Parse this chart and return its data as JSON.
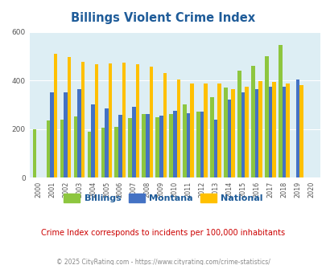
{
  "title": "Billings Violent Crime Index",
  "years": [
    2000,
    2001,
    2002,
    2003,
    2004,
    2005,
    2006,
    2007,
    2008,
    2009,
    2010,
    2011,
    2012,
    2013,
    2014,
    2015,
    2016,
    2017,
    2018,
    2019,
    2020
  ],
  "billings": [
    200,
    235,
    240,
    250,
    190,
    205,
    210,
    245,
    260,
    248,
    260,
    300,
    270,
    330,
    370,
    440,
    460,
    500,
    545,
    0,
    0
  ],
  "montana": [
    0,
    350,
    350,
    365,
    300,
    285,
    258,
    290,
    262,
    255,
    275,
    265,
    270,
    240,
    320,
    350,
    365,
    375,
    375,
    405,
    0
  ],
  "national": [
    0,
    510,
    497,
    477,
    465,
    470,
    472,
    465,
    458,
    430,
    405,
    387,
    387,
    388,
    365,
    373,
    398,
    395,
    388,
    379,
    0
  ],
  "billings_color": "#8dc63f",
  "montana_color": "#4472c4",
  "national_color": "#ffc000",
  "bg_color": "#ddeef4",
  "title_color": "#1f5c99",
  "ylim": [
    0,
    600
  ],
  "yticks": [
    0,
    200,
    400,
    600
  ],
  "subtitle": "Crime Index corresponds to incidents per 100,000 inhabitants",
  "footer": "© 2025 CityRating.com - https://www.cityrating.com/crime-statistics/",
  "legend_labels": [
    "Billings",
    "Montana",
    "National"
  ],
  "subtitle_color": "#cc0000",
  "footer_color": "#888888",
  "tick_color": "#555555"
}
